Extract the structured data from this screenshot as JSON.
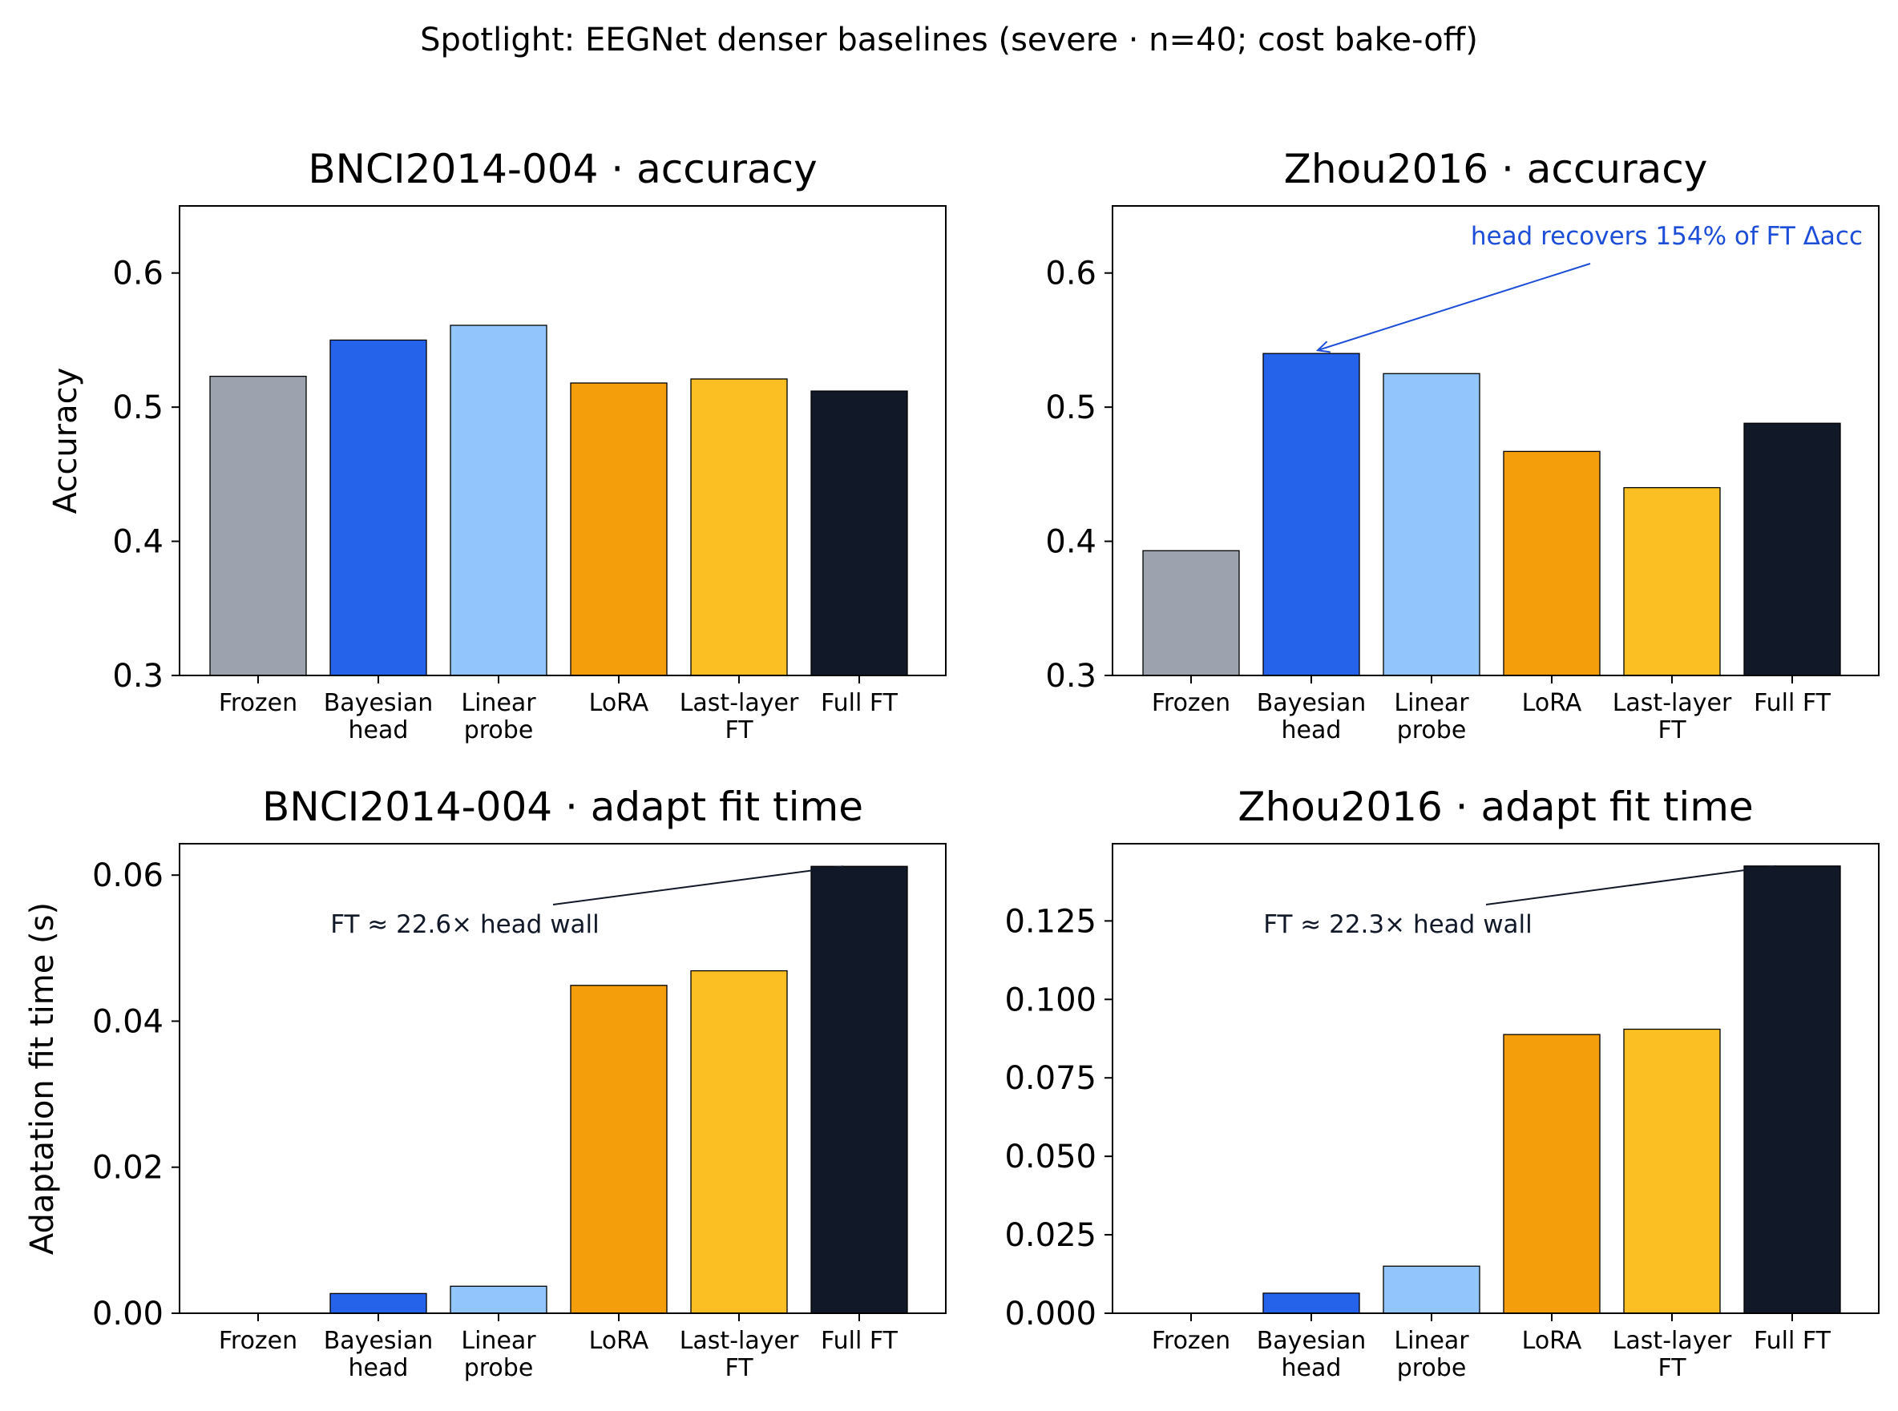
{
  "suptitle": "Spotlight: EEGNet denser baselines (severe · n=40; cost bake-off)",
  "colors": {
    "Frozen": "#9ca3af",
    "Bayesian head": "#2563eb",
    "Linear probe": "#93c5fd",
    "LoRA": "#f59e0b",
    "Last-layer FT": "#fbbf24",
    "Full FT": "#111827",
    "annotation_blue": "#1d4ed8",
    "annotation_dark": "#111827"
  },
  "chart_data": [
    {
      "type": "bar",
      "title": "BNCI2014-004 · accuracy",
      "ylabel": "Accuracy",
      "categories": [
        "Frozen",
        "Bayesian head",
        "Linear probe",
        "LoRA",
        "Last-layer FT",
        "Full FT"
      ],
      "category_lines": [
        [
          "Frozen"
        ],
        [
          "Bayesian",
          "head"
        ],
        [
          "Linear",
          "probe"
        ],
        [
          "LoRA"
        ],
        [
          "Last-layer",
          "FT"
        ],
        [
          "Full FT"
        ]
      ],
      "values": [
        0.523,
        0.55,
        0.561,
        0.518,
        0.521,
        0.512
      ],
      "ylim": [
        0.3,
        0.65
      ],
      "yticks": [
        0.3,
        0.4,
        0.5,
        0.6
      ],
      "ytick_labels": [
        "0.3",
        "0.4",
        "0.5",
        "0.6"
      ]
    },
    {
      "type": "bar",
      "title": "Zhou2016 · accuracy",
      "ylabel": "",
      "categories": [
        "Frozen",
        "Bayesian head",
        "Linear probe",
        "LoRA",
        "Last-layer FT",
        "Full FT"
      ],
      "category_lines": [
        [
          "Frozen"
        ],
        [
          "Bayesian",
          "head"
        ],
        [
          "Linear",
          "probe"
        ],
        [
          "LoRA"
        ],
        [
          "Last-layer",
          "FT"
        ],
        [
          "Full FT"
        ]
      ],
      "values": [
        0.393,
        0.54,
        0.525,
        0.467,
        0.44,
        0.488
      ],
      "ylim": [
        0.3,
        0.65
      ],
      "yticks": [
        0.3,
        0.4,
        0.5,
        0.6
      ],
      "ytick_labels": [
        "0.3",
        "0.4",
        "0.5",
        "0.6"
      ],
      "annotation": {
        "text": "head recovers 154% of FT Δacc",
        "target_index": 1,
        "arrow": true,
        "color": "#1d4ed8"
      }
    },
    {
      "type": "bar",
      "title": "BNCI2014-004 · adapt fit time",
      "ylabel": "Adaptation fit time (s)",
      "categories": [
        "Frozen",
        "Bayesian head",
        "Linear probe",
        "LoRA",
        "Last-layer FT",
        "Full FT"
      ],
      "category_lines": [
        [
          "Frozen"
        ],
        [
          "Bayesian",
          "head"
        ],
        [
          "Linear",
          "probe"
        ],
        [
          "LoRA"
        ],
        [
          "Last-layer",
          "FT"
        ],
        [
          "Full FT"
        ]
      ],
      "values": [
        0.0,
        0.0027,
        0.0037,
        0.0449,
        0.0469,
        0.0612
      ],
      "ylim": [
        0.0,
        0.0643
      ],
      "yticks": [
        0.0,
        0.02,
        0.04,
        0.06
      ],
      "ytick_labels": [
        "0.00",
        "0.02",
        "0.04",
        "0.06"
      ],
      "annotation": {
        "text": "FT ≈ 22.6× head wall",
        "target_index": 5,
        "arrow": false,
        "color": "#111827"
      }
    },
    {
      "type": "bar",
      "title": "Zhou2016 · adapt fit time",
      "ylabel": "",
      "categories": [
        "Frozen",
        "Bayesian head",
        "Linear probe",
        "LoRA",
        "Last-layer FT",
        "Full FT"
      ],
      "category_lines": [
        [
          "Frozen"
        ],
        [
          "Bayesian",
          "head"
        ],
        [
          "Linear",
          "probe"
        ],
        [
          "LoRA"
        ],
        [
          "Last-layer",
          "FT"
        ],
        [
          "Full FT"
        ]
      ],
      "values": [
        0.0,
        0.0064,
        0.015,
        0.0888,
        0.0905,
        0.1425
      ],
      "ylim": [
        0.0,
        0.1496
      ],
      "yticks": [
        0.0,
        0.025,
        0.05,
        0.075,
        0.1,
        0.125
      ],
      "ytick_labels": [
        "0.000",
        "0.025",
        "0.050",
        "0.075",
        "0.100",
        "0.125"
      ],
      "annotation": {
        "text": "FT ≈ 22.3× head wall",
        "target_index": 5,
        "arrow": false,
        "color": "#111827"
      }
    }
  ]
}
